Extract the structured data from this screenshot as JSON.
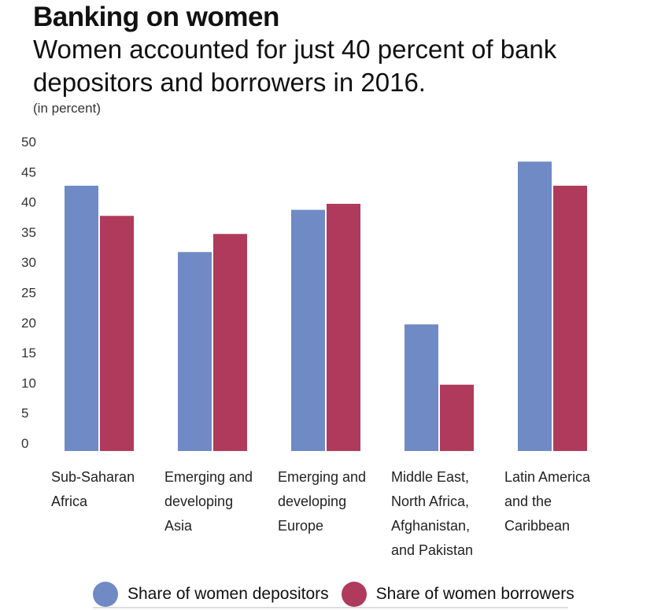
{
  "header": {
    "title": "Banking on women",
    "subtitle": "Women accounted for just 40 percent of bank depositors and borrowers in 2016.",
    "unit": "(in percent)"
  },
  "colors": {
    "depositors": "#6F8AC4",
    "borrowers": "#B03A5B"
  },
  "chart_data": {
    "type": "bar",
    "title": "Banking on women",
    "subtitle": "Women accounted for just 40 percent of bank depositors and borrowers in 2016.",
    "ylabel": "(in percent)",
    "xlabel": "",
    "ylim": [
      0,
      50
    ],
    "yticks": [
      0,
      5,
      10,
      15,
      20,
      25,
      30,
      35,
      40,
      45,
      50
    ],
    "grid": false,
    "legend_position": "bottom",
    "categories": [
      [
        "Sub-Saharan",
        "Africa"
      ],
      [
        "Emerging and",
        "developing",
        "Asia"
      ],
      [
        "Emerging and",
        "developing",
        "Europe"
      ],
      [
        "Middle East,",
        "North Africa,",
        "Afghanistan,",
        "and Pakistan"
      ],
      [
        "Latin America",
        "and the",
        "Caribbean"
      ]
    ],
    "series": [
      {
        "name": "Share of women depositors",
        "values": [
          44,
          33,
          40,
          21,
          48
        ]
      },
      {
        "name": "Share of women borrowers",
        "values": [
          39,
          36,
          41,
          11,
          44
        ]
      }
    ]
  }
}
